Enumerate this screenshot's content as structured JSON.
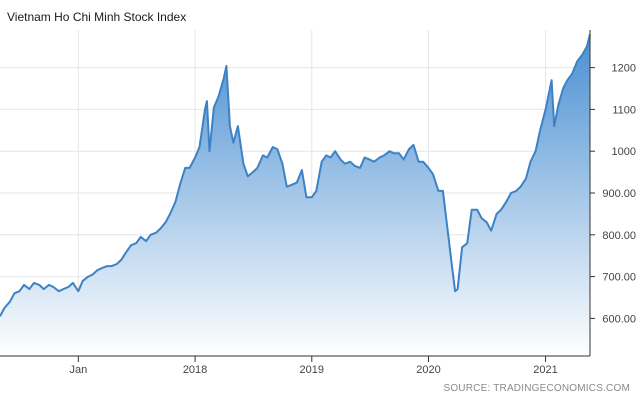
{
  "chart_data": {
    "type": "area",
    "title": "Vietnam Ho Chi Minh Stock Index",
    "source": "SOURCE: TRADINGECONOMICS.COM",
    "xlabel": "",
    "ylabel": "",
    "x_ticks": [
      "Jan",
      "2018",
      "2019",
      "2020",
      "2021"
    ],
    "y_ticks": [
      "600.00",
      "700.00",
      "800.00",
      "900.00",
      "1000",
      "1100",
      "1200"
    ],
    "ylim": [
      510,
      1290
    ],
    "grid": true,
    "legend": "none",
    "line_color": "#3d82c4",
    "fill_top_color": "#4a8fd2",
    "fill_bottom_color": "#ffffff",
    "series": [
      {
        "x": [
          "2016-05-01",
          "2016-05-15",
          "2016-06-01",
          "2016-06-15",
          "2016-07-01",
          "2016-07-15",
          "2016-08-01",
          "2016-08-15",
          "2016-09-01",
          "2016-09-15",
          "2016-10-01",
          "2016-10-15",
          "2016-11-01",
          "2016-11-15",
          "2016-12-01",
          "2016-12-15",
          "2017-01-01",
          "2017-01-15",
          "2017-02-01",
          "2017-02-15",
          "2017-03-01",
          "2017-03-15",
          "2017-04-01",
          "2017-04-15",
          "2017-05-01",
          "2017-05-15",
          "2017-06-01",
          "2017-06-15",
          "2017-07-01",
          "2017-07-15",
          "2017-08-01",
          "2017-08-15",
          "2017-09-01",
          "2017-09-15",
          "2017-10-01",
          "2017-10-15",
          "2017-11-01",
          "2017-11-15",
          "2017-12-01",
          "2017-12-15",
          "2018-01-01",
          "2018-01-15",
          "2018-02-01",
          "2018-02-07",
          "2018-02-15",
          "2018-03-01",
          "2018-03-15",
          "2018-04-01",
          "2018-04-09",
          "2018-04-20",
          "2018-05-01",
          "2018-05-15",
          "2018-06-01",
          "2018-06-15",
          "2018-07-01",
          "2018-07-15",
          "2018-08-01",
          "2018-08-15",
          "2018-09-01",
          "2018-09-15",
          "2018-10-01",
          "2018-10-15",
          "2018-11-01",
          "2018-11-15",
          "2018-12-01",
          "2018-12-15",
          "2019-01-01",
          "2019-01-15",
          "2019-02-01",
          "2019-02-15",
          "2019-03-01",
          "2019-03-15",
          "2019-04-01",
          "2019-04-15",
          "2019-05-01",
          "2019-05-15",
          "2019-06-01",
          "2019-06-15",
          "2019-07-01",
          "2019-07-15",
          "2019-08-01",
          "2019-08-15",
          "2019-09-01",
          "2019-09-15",
          "2019-10-01",
          "2019-10-15",
          "2019-11-01",
          "2019-11-15",
          "2019-12-01",
          "2019-12-15",
          "2020-01-01",
          "2020-01-15",
          "2020-02-01",
          "2020-02-15",
          "2020-03-01",
          "2020-03-12",
          "2020-03-24",
          "2020-04-01",
          "2020-04-15",
          "2020-05-01",
          "2020-05-15",
          "2020-06-01",
          "2020-06-15",
          "2020-07-01",
          "2020-07-15",
          "2020-08-01",
          "2020-08-15",
          "2020-09-01",
          "2020-09-15",
          "2020-10-01",
          "2020-10-15",
          "2020-11-01",
          "2020-11-15",
          "2020-12-01",
          "2020-12-15",
          "2021-01-01",
          "2021-01-20",
          "2021-01-28",
          "2021-02-10",
          "2021-02-25",
          "2021-03-10",
          "2021-03-25",
          "2021-04-10",
          "2021-04-25",
          "2021-05-10",
          "2021-05-20"
        ],
        "y": [
          605,
          625,
          640,
          660,
          665,
          680,
          670,
          685,
          680,
          670,
          680,
          675,
          665,
          670,
          675,
          685,
          665,
          690,
          700,
          705,
          715,
          720,
          725,
          725,
          730,
          740,
          760,
          775,
          780,
          795,
          785,
          800,
          805,
          815,
          830,
          850,
          880,
          920,
          960,
          960,
          985,
          1010,
          1100,
          1120,
          1000,
          1105,
          1130,
          1175,
          1204,
          1060,
          1020,
          1060,
          970,
          940,
          950,
          960,
          990,
          985,
          1010,
          1005,
          970,
          915,
          920,
          925,
          955,
          890,
          890,
          905,
          975,
          990,
          985,
          1000,
          980,
          970,
          975,
          965,
          960,
          985,
          980,
          975,
          985,
          990,
          1000,
          995,
          995,
          980,
          1005,
          1015,
          975,
          975,
          960,
          945,
          905,
          905,
          810,
          740,
          665,
          670,
          770,
          780,
          860,
          860,
          840,
          830,
          810,
          850,
          860,
          880,
          900,
          905,
          915,
          935,
          975,
          1000,
          1050,
          1100,
          1170,
          1060,
          1110,
          1150,
          1170,
          1185,
          1215,
          1230,
          1250,
          1280
        ]
      }
    ]
  }
}
